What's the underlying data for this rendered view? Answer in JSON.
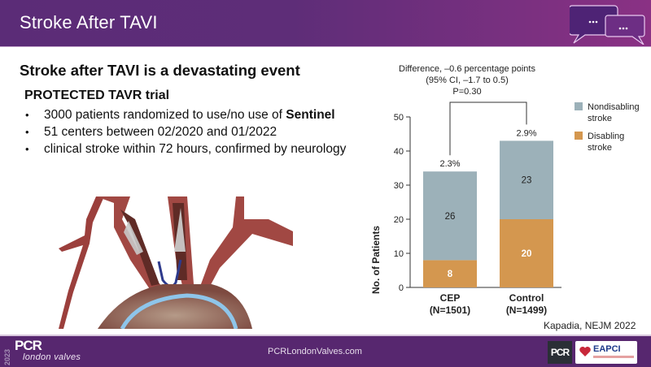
{
  "header": {
    "title": "Stroke After TAVI",
    "icon": "chat-bubbles-icon"
  },
  "content": {
    "headline": "Stroke after TAVI is a devastating event",
    "subhead": "PROTECTED TAVR trial",
    "bullet_marker": "•",
    "bullets": [
      {
        "text": "3000 patients randomized to use/no use of ",
        "bold": "Sentinel"
      },
      {
        "text": "51 centers between 02/2020 and 01/2022",
        "bold": ""
      },
      {
        "text": "clinical stroke within 72 hours, confirmed by neurology",
        "bold": ""
      }
    ],
    "illustration": "aortic-arch-cerebral-embolic-protection-illustration"
  },
  "chart_data": {
    "type": "bar",
    "stacked": true,
    "categories": [
      "CEP",
      "Control"
    ],
    "category_sublabels": [
      "(N=1501)",
      "(N=1499)"
    ],
    "series": [
      {
        "name": "Disabling stroke",
        "values": [
          8,
          20
        ],
        "color": "#d4974f",
        "label_color": "#ffffff"
      },
      {
        "name": "Nondisabling stroke",
        "values": [
          26,
          23
        ],
        "color": "#9cb1b9",
        "label_color": "#222222"
      }
    ],
    "bar_top_labels": [
      "2.3%",
      "2.9%"
    ],
    "annotation_lines": [
      "Difference, –0.6 percentage points",
      "(95% CI, –1.7 to 0.5)",
      "P=0.30"
    ],
    "ylabel": "No. of Patients",
    "xlabel": "",
    "ylim": [
      0,
      50
    ],
    "yticks": [
      0,
      10,
      20,
      30,
      40,
      50
    ],
    "legend": {
      "placement": "right",
      "entries": [
        {
          "label_lines": [
            "Nondisabling",
            "stroke"
          ],
          "color": "#9cb1b9"
        },
        {
          "label_lines": [
            "Disabling",
            "stroke"
          ],
          "color": "#d4974f"
        }
      ]
    },
    "grid": false
  },
  "citation": "Kapadia, NEJM 2022",
  "footer": {
    "year": "2023",
    "logo": "PCR",
    "logo_sub": "london valves",
    "url": "PCRLondonValves.com",
    "partner_pcr": "PCR",
    "partner_eapci": "EAPCI"
  }
}
